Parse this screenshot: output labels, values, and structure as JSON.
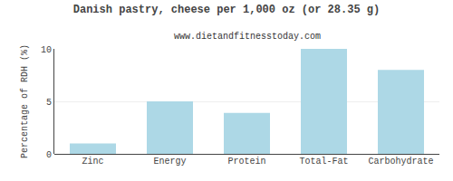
{
  "chart_data": {
    "type": "bar",
    "title": "Danish pastry, cheese per 1,000 oz (or 28.35 g)",
    "subtitle": "www.dietandfitnesstoday.com",
    "categories": [
      "Zinc",
      "Energy",
      "Protein",
      "Total-Fat",
      "Carbohydrate"
    ],
    "values": [
      1.0,
      5.0,
      3.9,
      10.0,
      8.0
    ],
    "color": "#add8e6",
    "ylabel": "Percentage of RDH (%)",
    "ylim": [
      0,
      10
    ],
    "yticks": [
      0,
      5,
      10
    ],
    "grid": true
  }
}
